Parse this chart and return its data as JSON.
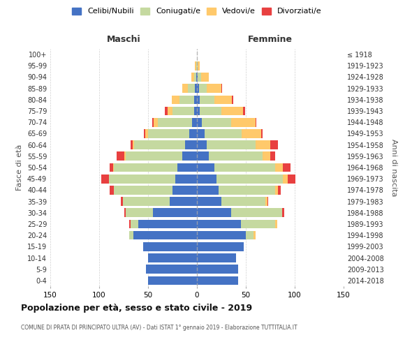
{
  "age_groups": [
    "0-4",
    "5-9",
    "10-14",
    "15-19",
    "20-24",
    "25-29",
    "30-34",
    "35-39",
    "40-44",
    "45-49",
    "50-54",
    "55-59",
    "60-64",
    "65-69",
    "70-74",
    "75-79",
    "80-84",
    "85-89",
    "90-94",
    "95-99",
    "100+"
  ],
  "birth_years": [
    "2014-2018",
    "2009-2013",
    "2004-2008",
    "1999-2003",
    "1994-1998",
    "1989-1993",
    "1984-1988",
    "1979-1983",
    "1974-1978",
    "1969-1973",
    "1964-1968",
    "1959-1963",
    "1954-1958",
    "1949-1953",
    "1944-1948",
    "1939-1943",
    "1934-1938",
    "1929-1933",
    "1924-1928",
    "1919-1923",
    "≤ 1918"
  ],
  "maschi": {
    "celibi": [
      50,
      52,
      50,
      55,
      65,
      60,
      45,
      28,
      25,
      22,
      20,
      15,
      12,
      8,
      5,
      3,
      3,
      2,
      1,
      0,
      0
    ],
    "coniugati": [
      0,
      0,
      0,
      0,
      4,
      8,
      28,
      48,
      60,
      68,
      65,
      58,
      52,
      42,
      35,
      22,
      15,
      7,
      2,
      1,
      0
    ],
    "vedovi": [
      0,
      0,
      0,
      0,
      0,
      0,
      0,
      0,
      0,
      0,
      1,
      1,
      2,
      3,
      4,
      5,
      8,
      6,
      3,
      1,
      0
    ],
    "divorziati": [
      0,
      0,
      0,
      0,
      0,
      1,
      1,
      2,
      4,
      8,
      3,
      8,
      2,
      1,
      2,
      3,
      0,
      0,
      0,
      0,
      0
    ]
  },
  "femmine": {
    "nubili": [
      42,
      42,
      40,
      48,
      50,
      45,
      35,
      25,
      22,
      20,
      18,
      12,
      10,
      8,
      5,
      3,
      3,
      2,
      1,
      0,
      0
    ],
    "coniugate": [
      0,
      0,
      0,
      0,
      8,
      35,
      52,
      45,
      58,
      68,
      62,
      55,
      50,
      38,
      30,
      22,
      15,
      8,
      3,
      1,
      0
    ],
    "vedove": [
      0,
      0,
      0,
      0,
      2,
      2,
      0,
      2,
      3,
      5,
      8,
      8,
      15,
      20,
      25,
      22,
      18,
      15,
      8,
      2,
      0
    ],
    "divorziate": [
      0,
      0,
      0,
      0,
      0,
      0,
      2,
      1,
      3,
      8,
      8,
      5,
      8,
      1,
      1,
      2,
      1,
      1,
      0,
      0,
      0
    ]
  },
  "colors": {
    "celibi_nubili": "#4472c4",
    "coniugati": "#c5d9a0",
    "vedovi": "#ffc96b",
    "divorziati": "#e84040"
  },
  "title": "Popolazione per età, sesso e stato civile - 2019",
  "subtitle": "COMUNE DI PRATA DI PRINCIPATO ULTRA (AV) - Dati ISTAT 1° gennaio 2019 - Elaborazione TUTTITALIA.IT",
  "xlabel_left": "Maschi",
  "xlabel_right": "Femmine",
  "ylabel_left": "Fasce di età",
  "ylabel_right": "Anni di nascita",
  "xlim": 150,
  "background_color": "#ffffff",
  "grid_color": "#cccccc"
}
